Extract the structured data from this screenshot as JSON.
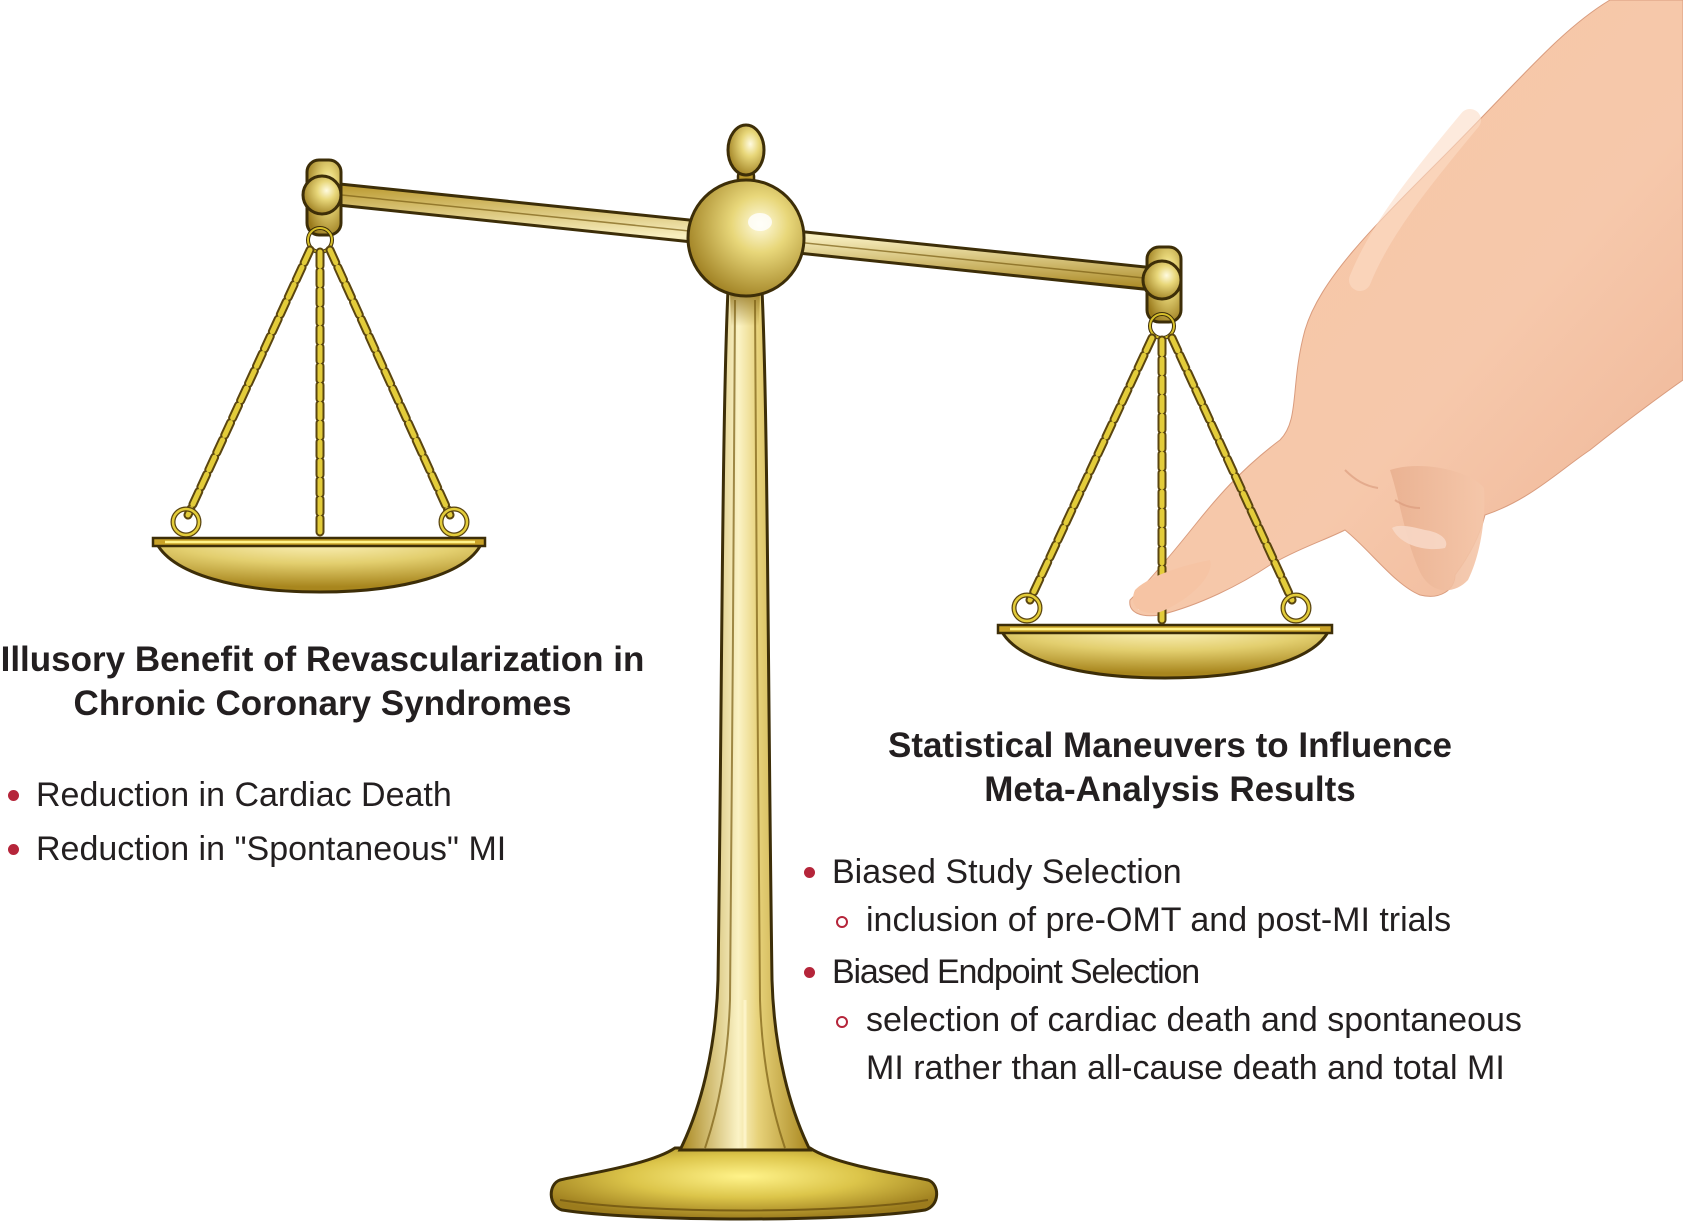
{
  "left": {
    "title_lines": [
      "Illusory Benefit of Revascularization in",
      "Chronic Coronary Syndromes"
    ],
    "bullets": [
      "Reduction in Cardiac Death",
      "Reduction in \"Spontaneous\" MI"
    ]
  },
  "right": {
    "title_lines": [
      "Statistical Maneuvers to Influence",
      "Meta-Analysis Results"
    ],
    "bullet_1": "Biased Study Selection",
    "bullet_1_sub": "inclusion of pre-OMT and post-MI trials",
    "bullet_2": "Biased Endpoint Selection",
    "bullet_2_sub_line1": "selection of cardiac death and spontaneous",
    "bullet_2_sub_line2": "MI rather than all-cause death and total MI"
  },
  "colors": {
    "gold": "#c9a227",
    "gold_dark": "#5a4510",
    "chain": "#d8c02a",
    "skin": "#f6c7a8",
    "bullet": "#b5253a"
  },
  "icons": [
    "balance-scale-icon",
    "hand-icon"
  ]
}
